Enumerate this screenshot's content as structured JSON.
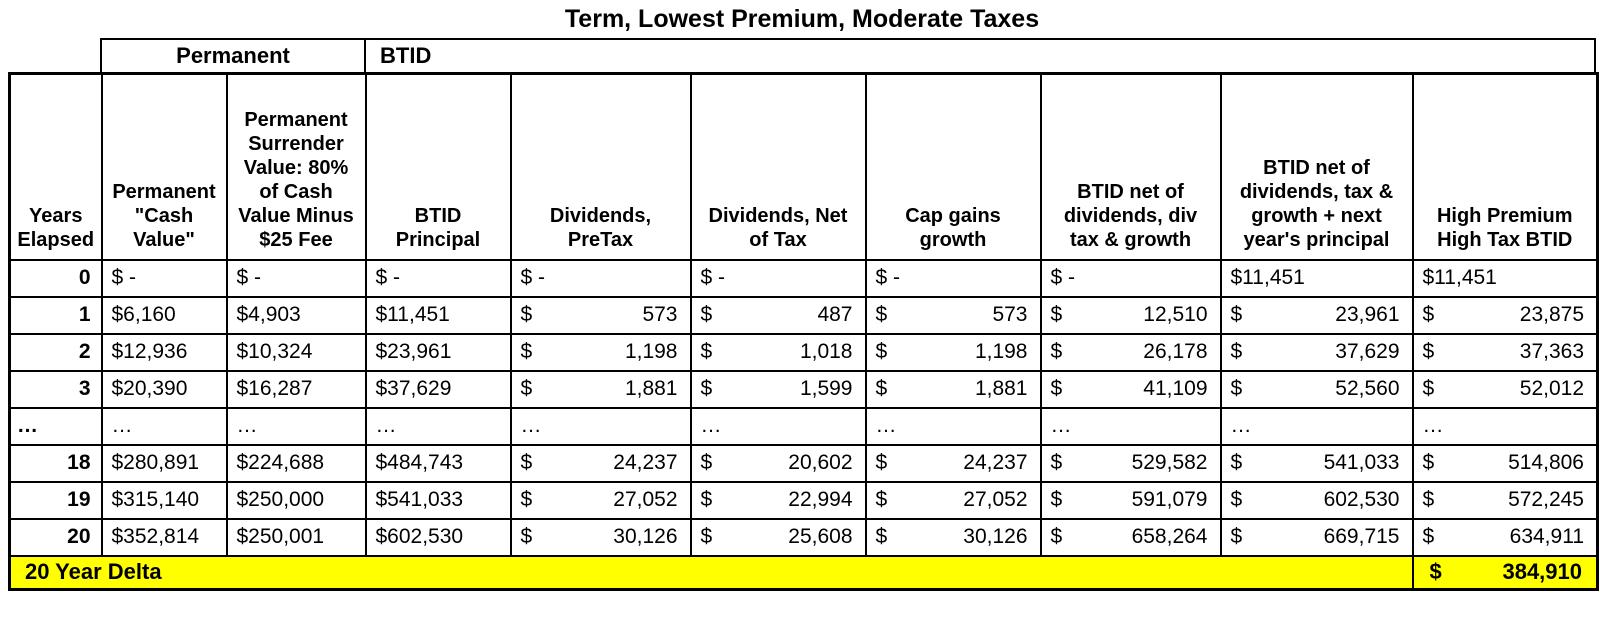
{
  "title": "Term, Lowest Premium, Moderate Taxes",
  "groups": {
    "permanent": "Permanent",
    "btid": "BTID"
  },
  "table": {
    "headers": [
      "Years\nElapsed",
      "Permanent\n\"Cash\nValue\"",
      "Permanent\nSurrender\nValue: 80%\nof Cash\nValue Minus\n$25 Fee",
      "BTID\nPrincipal",
      "Dividends,\nPreTax",
      "Dividends, Net\nof Tax",
      "Cap gains\ngrowth",
      "BTID net of\ndividends, div\ntax & growth",
      "BTID net of\ndividends, tax &\ngrowth + next\nyear's principal",
      "High Premium\nHigh Tax BTID"
    ],
    "rows": [
      {
        "kind": "data",
        "year": "0",
        "cells": [
          "$ -",
          "$ -",
          "$ -",
          "$ -",
          "$ -",
          "$ -",
          "$ -",
          "$11,451",
          "$11,451"
        ]
      },
      {
        "kind": "data",
        "year": "1",
        "cells": [
          "$6,160",
          "$4,903",
          "$11,451",
          [
            "$",
            "573"
          ],
          [
            "$",
            "487"
          ],
          [
            "$",
            "573"
          ],
          [
            "$",
            "12,510"
          ],
          [
            "$",
            "23,961"
          ],
          [
            "$",
            "23,875"
          ]
        ]
      },
      {
        "kind": "data",
        "year": "2",
        "cells": [
          "$12,936",
          "$10,324",
          "$23,961",
          [
            "$",
            "1,198"
          ],
          [
            "$",
            "1,018"
          ],
          [
            "$",
            "1,198"
          ],
          [
            "$",
            "26,178"
          ],
          [
            "$",
            "37,629"
          ],
          [
            "$",
            "37,363"
          ]
        ]
      },
      {
        "kind": "data",
        "year": "3",
        "cells": [
          "$20,390",
          "$16,287",
          "$37,629",
          [
            "$",
            "1,881"
          ],
          [
            "$",
            "1,599"
          ],
          [
            "$",
            "1,881"
          ],
          [
            "$",
            "41,109"
          ],
          [
            "$",
            "52,560"
          ],
          [
            "$",
            "52,012"
          ]
        ]
      },
      {
        "kind": "ellipsis",
        "year": "…",
        "cells": [
          "…",
          "…",
          "…",
          "…",
          "…",
          "…",
          "…",
          "…",
          "…"
        ]
      },
      {
        "kind": "data",
        "year": "18",
        "cells": [
          "$280,891",
          "$224,688",
          "$484,743",
          [
            "$",
            "24,237"
          ],
          [
            "$",
            "20,602"
          ],
          [
            "$",
            "24,237"
          ],
          [
            "$",
            "529,582"
          ],
          [
            "$",
            "541,033"
          ],
          [
            "$",
            "514,806"
          ]
        ]
      },
      {
        "kind": "data",
        "year": "19",
        "cells": [
          "$315,140",
          "$250,000",
          "$541,033",
          [
            "$",
            "27,052"
          ],
          [
            "$",
            "22,994"
          ],
          [
            "$",
            "27,052"
          ],
          [
            "$",
            "591,079"
          ],
          [
            "$",
            "602,530"
          ],
          [
            "$",
            "572,245"
          ]
        ]
      },
      {
        "kind": "data",
        "year": "20",
        "cells": [
          "$352,814",
          "$250,001",
          "$602,530",
          [
            "$",
            "30,126"
          ],
          [
            "$",
            "25,608"
          ],
          [
            "$",
            "30,126"
          ],
          [
            "$",
            "658,264"
          ],
          [
            "$",
            "669,715"
          ],
          [
            "$",
            "634,911"
          ]
        ]
      }
    ]
  },
  "footer": {
    "label": "20 Year Delta",
    "currency": "$",
    "value": "384,910"
  },
  "colors": {
    "highlight": "#ffff00",
    "border": "#000000",
    "background": "#ffffff"
  },
  "chart_data": {
    "type": "table",
    "title": "Term, Lowest Premium, Moderate Taxes",
    "column_groups": [
      {
        "label": "Permanent",
        "columns": [
          "Permanent \"Cash Value\"",
          "Permanent Surrender Value: 80% of Cash Value Minus $25 Fee"
        ]
      },
      {
        "label": "BTID",
        "columns": [
          "BTID Principal",
          "Dividends, PreTax",
          "Dividends, Net of Tax",
          "Cap gains growth",
          "BTID net of dividends, div tax & growth",
          "BTID net of dividends, tax & growth + next year's principal",
          "High Premium High Tax BTID"
        ]
      }
    ],
    "x_label": "Years Elapsed",
    "years": [
      0,
      1,
      2,
      3,
      "…",
      18,
      19,
      20
    ],
    "series": [
      {
        "name": "Permanent \"Cash Value\"",
        "values": [
          0,
          6160,
          12936,
          20390,
          "…",
          280891,
          315140,
          352814
        ]
      },
      {
        "name": "Permanent Surrender Value: 80% of Cash Value Minus $25 Fee",
        "values": [
          0,
          4903,
          10324,
          16287,
          "…",
          224688,
          250000,
          250001
        ]
      },
      {
        "name": "BTID Principal",
        "values": [
          0,
          11451,
          23961,
          37629,
          "…",
          484743,
          541033,
          602530
        ]
      },
      {
        "name": "Dividends, PreTax",
        "values": [
          0,
          573,
          1198,
          1881,
          "…",
          24237,
          27052,
          30126
        ]
      },
      {
        "name": "Dividends, Net of Tax",
        "values": [
          0,
          487,
          1018,
          1599,
          "…",
          20602,
          22994,
          25608
        ]
      },
      {
        "name": "Cap gains growth",
        "values": [
          0,
          573,
          1198,
          1881,
          "…",
          24237,
          27052,
          30126
        ]
      },
      {
        "name": "BTID net of dividends, div tax & growth",
        "values": [
          0,
          12510,
          26178,
          41109,
          "…",
          529582,
          591079,
          658264
        ]
      },
      {
        "name": "BTID net of dividends, tax & growth + next year's principal",
        "values": [
          11451,
          23961,
          37629,
          52560,
          "…",
          541033,
          602530,
          669715
        ]
      },
      {
        "name": "High Premium High Tax BTID",
        "values": [
          11451,
          23875,
          37363,
          52012,
          "…",
          514806,
          572245,
          634911
        ]
      }
    ],
    "footer": {
      "label": "20 Year Delta",
      "value": 384910
    }
  }
}
